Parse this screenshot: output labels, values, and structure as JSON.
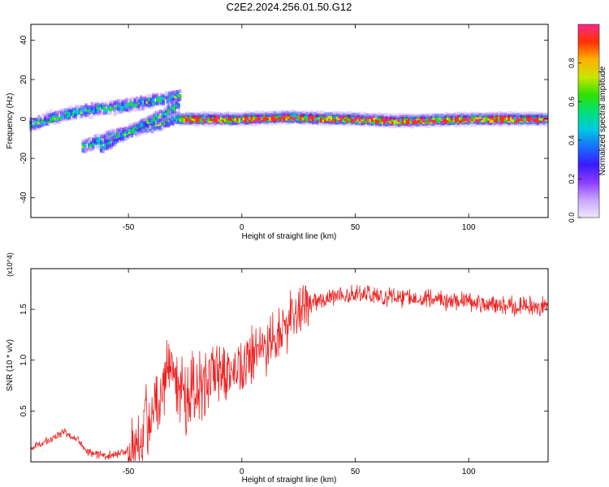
{
  "title": "C2E2.2024.256.01.50.G12",
  "chart_data": [
    {
      "type": "heatmap",
      "xlabel": "Height of straight line (km)",
      "ylabel": "Frequency (Hz)",
      "xlim": [
        -93,
        135
      ],
      "ylim": [
        -50,
        48
      ],
      "xticks": [
        -50,
        0,
        50,
        100
      ],
      "yticks": [
        -40,
        -20,
        0,
        20,
        40
      ],
      "colorbar": {
        "label": "Normalized spectral amplitude",
        "range": [
          0,
          1
        ],
        "ticks": [
          "0.0",
          "0.2",
          "0.4",
          "0.6",
          "0.8"
        ],
        "colors": [
          "#f0e8ff",
          "#c9a6ff",
          "#8a3dff",
          "#3a1aff",
          "#1a6cff",
          "#00c8e0",
          "#00e07a",
          "#30e000",
          "#c8e600",
          "#ffb000",
          "#ff3000",
          "#ff2a88"
        ]
      },
      "series": [
        {
          "x": [
            -93,
            -85,
            -75,
            -65,
            -55,
            -45,
            -35,
            -27
          ],
          "y": [
            -3,
            0,
            3,
            5,
            6,
            8,
            10,
            12
          ]
        },
        {
          "x": [
            -70,
            -65,
            -55,
            -45,
            -35,
            -27
          ],
          "y": [
            -14,
            -12,
            -8,
            -5,
            -2,
            1
          ]
        },
        {
          "x": [
            -62,
            -55,
            -45,
            -35,
            -27
          ],
          "y": [
            -14,
            -10,
            -4,
            2,
            8
          ]
        },
        {
          "x": [
            -27,
            0,
            20,
            30,
            50,
            70,
            100,
            135
          ],
          "y": [
            0,
            0,
            1,
            0.5,
            0,
            -1,
            0,
            0
          ]
        }
      ]
    },
    {
      "type": "line",
      "xlabel": "Height of straight line (km)",
      "ylabel": "SNR (10 * v/v)",
      "multiplier": "(x10^4)",
      "xlim": [
        -93,
        135
      ],
      "ylim": [
        0,
        1.9
      ],
      "xticks": [
        -50,
        0,
        50,
        100
      ],
      "yticks": [
        "0.5",
        "1.0",
        "1.5"
      ],
      "color": "#ee2222",
      "x": [
        -93,
        -88,
        -82,
        -78,
        -72,
        -68,
        -65,
        -60,
        -55,
        -50,
        -47,
        -44,
        -40,
        -37,
        -34,
        -31,
        -28,
        -25,
        -22,
        -19,
        -16,
        -13,
        -10,
        -7,
        -4,
        -1,
        2,
        6,
        10,
        14,
        18,
        22,
        26,
        30,
        35,
        40,
        45,
        50,
        55,
        60,
        65,
        70,
        75,
        80,
        85,
        90,
        92,
        95,
        100,
        105,
        110,
        115,
        120,
        125,
        130,
        135
      ],
      "y": [
        0.15,
        0.18,
        0.25,
        0.3,
        0.22,
        0.1,
        0.08,
        0.06,
        0.08,
        0.12,
        0.2,
        0.35,
        0.45,
        0.6,
        0.85,
        1.05,
        0.8,
        0.6,
        0.65,
        0.7,
        0.75,
        0.8,
        0.8,
        0.85,
        0.9,
        0.95,
        1.0,
        1.05,
        1.1,
        1.2,
        1.3,
        1.4,
        1.5,
        1.55,
        1.6,
        1.62,
        1.65,
        1.65,
        1.65,
        1.63,
        1.62,
        1.62,
        1.62,
        1.62,
        1.6,
        1.6,
        1.55,
        1.6,
        1.58,
        1.55,
        1.55,
        1.55,
        1.53,
        1.53,
        1.53,
        1.52
      ]
    }
  ]
}
